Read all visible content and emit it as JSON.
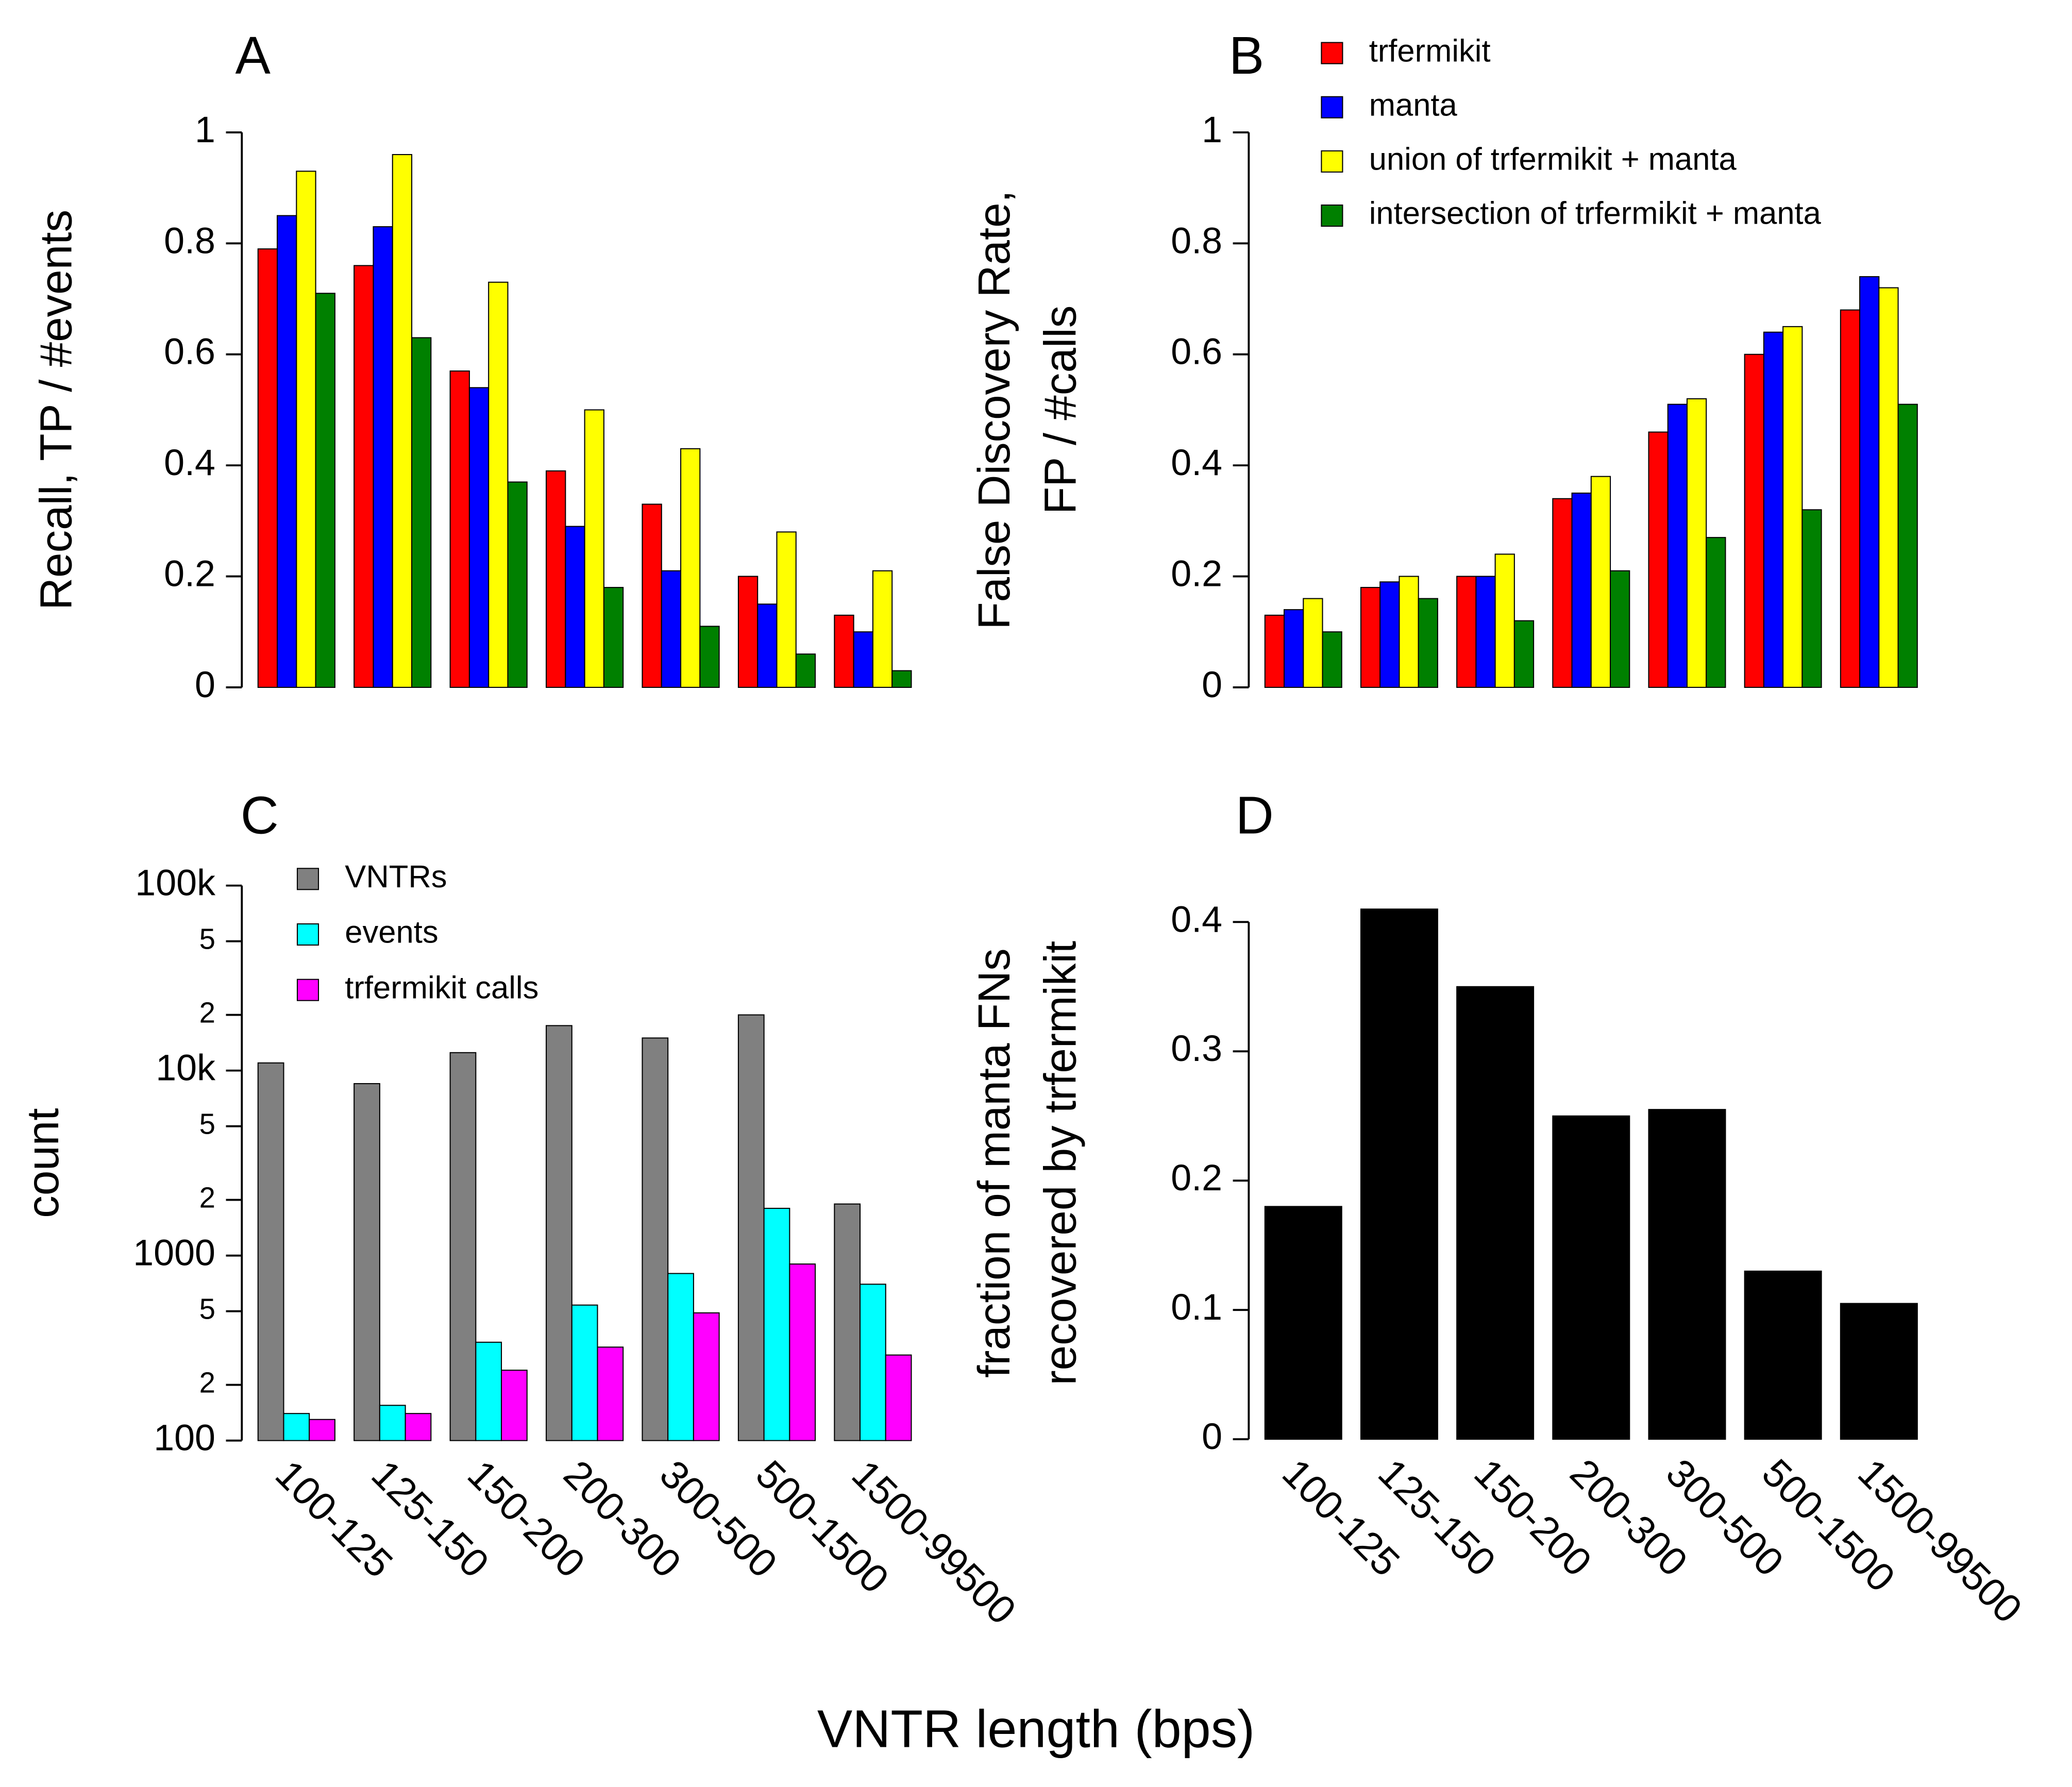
{
  "xlabel": "VNTR length (bps)",
  "chart_data": [
    {
      "type": "bar",
      "title": "A",
      "ylabel": "Recall, TP / #events",
      "ylim": [
        0,
        1
      ],
      "yticks": [
        0,
        0.2,
        0.4,
        0.6,
        0.8,
        1
      ],
      "series": [
        {
          "name": "trfermikit",
          "color": "#ff0000",
          "values": [
            0.79,
            0.76,
            0.57,
            0.39,
            0.33,
            0.2,
            0.13
          ]
        },
        {
          "name": "manta",
          "color": "#0000ff",
          "values": [
            0.85,
            0.83,
            0.54,
            0.29,
            0.21,
            0.15,
            0.1
          ]
        },
        {
          "name": "union of trfermikit + manta",
          "color": "#ffff00",
          "values": [
            0.93,
            0.96,
            0.73,
            0.5,
            0.43,
            0.28,
            0.21
          ]
        },
        {
          "name": "intersection of trfermikit + manta",
          "color": "#008000",
          "values": [
            0.71,
            0.63,
            0.37,
            0.18,
            0.11,
            0.06,
            0.03
          ]
        }
      ],
      "legend": "none"
    },
    {
      "type": "bar",
      "title": "B",
      "ylabel": [
        "False Discovery Rate,",
        "FP / #calls"
      ],
      "ylim": [
        0,
        1
      ],
      "yticks": [
        0,
        0.2,
        0.4,
        0.6,
        0.8,
        1
      ],
      "series": [
        {
          "name": "trfermikit",
          "color": "#ff0000",
          "values": [
            0.13,
            0.18,
            0.2,
            0.34,
            0.46,
            0.6,
            0.68
          ]
        },
        {
          "name": "manta",
          "color": "#0000ff",
          "values": [
            0.14,
            0.19,
            0.2,
            0.35,
            0.51,
            0.64,
            0.74
          ]
        },
        {
          "name": "union of trfermikit + manta",
          "color": "#ffff00",
          "values": [
            0.16,
            0.2,
            0.24,
            0.38,
            0.52,
            0.65,
            0.72
          ]
        },
        {
          "name": "intersection of trfermikit + manta",
          "color": "#008000",
          "values": [
            0.1,
            0.16,
            0.12,
            0.21,
            0.27,
            0.32,
            0.51
          ]
        }
      ],
      "legend": "upper right"
    },
    {
      "type": "bar",
      "title": "C",
      "ylabel": "count",
      "log_scale": true,
      "categories": [
        "100-125",
        "125-150",
        "150-200",
        "200-300",
        "300-500",
        "500-1500",
        "1500-99500"
      ],
      "ylim": [
        100,
        100000
      ],
      "yticks": [
        100,
        {
          "value": 200,
          "label": "2"
        },
        {
          "value": 500,
          "label": "5"
        },
        1000,
        {
          "value": 2000,
          "label": "2"
        },
        {
          "value": 5000,
          "label": "5"
        },
        {
          "value": 10000,
          "label": "10k"
        },
        {
          "value": 20000,
          "label": "2"
        },
        {
          "value": 50000,
          "label": "5"
        },
        {
          "value": 100000,
          "label": "100k"
        }
      ],
      "series": [
        {
          "name": "VNTRs",
          "color": "#808080",
          "values": [
            11000,
            8500,
            12500,
            17500,
            15000,
            20000,
            1900
          ]
        },
        {
          "name": "events",
          "color": "#00ffff",
          "values": [
            140,
            155,
            340,
            540,
            800,
            1800,
            700
          ]
        },
        {
          "name": "trfermikit calls",
          "color": "#ff00ff",
          "values": [
            130,
            140,
            240,
            320,
            490,
            900,
            290
          ]
        }
      ],
      "legend": "upper left"
    },
    {
      "type": "bar",
      "title": "D",
      "ylabel": [
        "fraction of manta FNs",
        "recovered by trfermikit"
      ],
      "categories": [
        "100-125",
        "125-150",
        "150-200",
        "200-300",
        "300-500",
        "500-1500",
        "1500-99500"
      ],
      "ylim": [
        0,
        0.42
      ],
      "yticks": [
        0,
        0.1,
        0.2,
        0.3,
        0.4
      ],
      "values": [
        0.18,
        0.41,
        0.35,
        0.25,
        0.255,
        0.13,
        0.105
      ],
      "color": "#000000"
    }
  ]
}
